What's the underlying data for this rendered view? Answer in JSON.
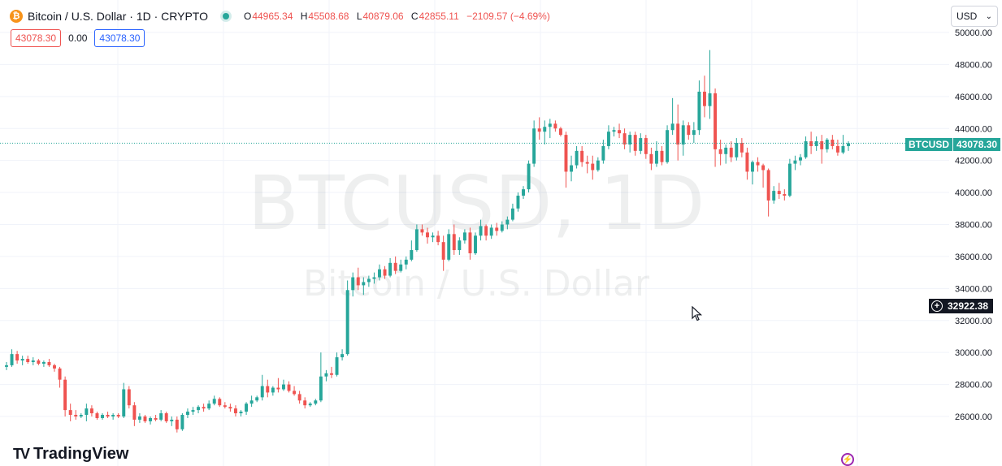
{
  "header": {
    "title": "Bitcoin / U.S. Dollar · 1D · CRYPTO",
    "coin_glyph": "₿",
    "ohlc": {
      "o_label": "O",
      "o_value": "44965.34",
      "h_label": "H",
      "h_value": "45508.68",
      "l_label": "L",
      "l_value": "40879.06",
      "c_label": "C",
      "c_value": "42855.11",
      "change": "−2109.57 (−4.69%)"
    },
    "badge_sell": "43078.30",
    "badge_spread": "0.00",
    "badge_buy": "43078.30"
  },
  "currency_select": {
    "value": "USD"
  },
  "watermark": {
    "symbol": "BTCUSD, 1D",
    "name": "Bitcoin / U.S. Dollar"
  },
  "logo": {
    "text": "TradingView",
    "glyph": "TV"
  },
  "price_tag": {
    "symbol": "BTCUSD",
    "price": "43078.30"
  },
  "crosshair_tag": {
    "price": "32922.38"
  },
  "colors": {
    "up": "#26a69a",
    "down": "#ef5350",
    "grid": "#f0f3fa",
    "text": "#131722"
  },
  "chart_data": {
    "type": "candlestick",
    "y_range": [
      24000,
      51000
    ],
    "y_ticks": [
      "26000.00",
      "28000.00",
      "30000.00",
      "32000.00",
      "34000.00",
      "36000.00",
      "38000.00",
      "40000.00",
      "42000.00",
      "44000.00",
      "46000.00",
      "48000.00",
      "50000.00"
    ],
    "last_price": 43078.3,
    "candles": [
      {
        "o": 29100,
        "h": 29400,
        "l": 28900,
        "c": 29200
      },
      {
        "o": 29200,
        "h": 30200,
        "l": 29100,
        "c": 29900
      },
      {
        "o": 29900,
        "h": 30100,
        "l": 29300,
        "c": 29500
      },
      {
        "o": 29500,
        "h": 29800,
        "l": 29200,
        "c": 29600
      },
      {
        "o": 29600,
        "h": 29800,
        "l": 29300,
        "c": 29400
      },
      {
        "o": 29400,
        "h": 29700,
        "l": 29200,
        "c": 29500
      },
      {
        "o": 29500,
        "h": 29600,
        "l": 29200,
        "c": 29300
      },
      {
        "o": 29300,
        "h": 29500,
        "l": 29100,
        "c": 29400
      },
      {
        "o": 29400,
        "h": 29600,
        "l": 29100,
        "c": 29200
      },
      {
        "o": 29200,
        "h": 29300,
        "l": 28800,
        "c": 29000
      },
      {
        "o": 29000,
        "h": 29100,
        "l": 27800,
        "c": 28300
      },
      {
        "o": 28300,
        "h": 28500,
        "l": 26000,
        "c": 26400
      },
      {
        "o": 26400,
        "h": 26800,
        "l": 25700,
        "c": 26100
      },
      {
        "o": 26100,
        "h": 26400,
        "l": 25800,
        "c": 26000
      },
      {
        "o": 26000,
        "h": 26200,
        "l": 25900,
        "c": 26100
      },
      {
        "o": 26100,
        "h": 26800,
        "l": 25700,
        "c": 26500
      },
      {
        "o": 26500,
        "h": 26700,
        "l": 26000,
        "c": 26200
      },
      {
        "o": 26200,
        "h": 26300,
        "l": 25800,
        "c": 25900
      },
      {
        "o": 25900,
        "h": 26200,
        "l": 25800,
        "c": 26100
      },
      {
        "o": 26100,
        "h": 26300,
        "l": 25900,
        "c": 26000
      },
      {
        "o": 26000,
        "h": 26200,
        "l": 25800,
        "c": 26100
      },
      {
        "o": 26100,
        "h": 26200,
        "l": 25900,
        "c": 26000
      },
      {
        "o": 26000,
        "h": 28100,
        "l": 25900,
        "c": 27700
      },
      {
        "o": 27700,
        "h": 27900,
        "l": 26500,
        "c": 26700
      },
      {
        "o": 26700,
        "h": 26900,
        "l": 25400,
        "c": 25800
      },
      {
        "o": 25800,
        "h": 26200,
        "l": 25600,
        "c": 26000
      },
      {
        "o": 26000,
        "h": 26100,
        "l": 25600,
        "c": 25700
      },
      {
        "o": 25700,
        "h": 26000,
        "l": 25500,
        "c": 25900
      },
      {
        "o": 25900,
        "h": 26100,
        "l": 25700,
        "c": 25800
      },
      {
        "o": 25800,
        "h": 26400,
        "l": 25700,
        "c": 26200
      },
      {
        "o": 26200,
        "h": 26300,
        "l": 25600,
        "c": 25700
      },
      {
        "o": 25700,
        "h": 26000,
        "l": 25400,
        "c": 25800
      },
      {
        "o": 25800,
        "h": 26000,
        "l": 25000,
        "c": 25200
      },
      {
        "o": 25200,
        "h": 26200,
        "l": 25100,
        "c": 26100
      },
      {
        "o": 26100,
        "h": 26500,
        "l": 25900,
        "c": 26300
      },
      {
        "o": 26300,
        "h": 26600,
        "l": 26100,
        "c": 26400
      },
      {
        "o": 26400,
        "h": 26700,
        "l": 26200,
        "c": 26600
      },
      {
        "o": 26600,
        "h": 26800,
        "l": 26300,
        "c": 26500
      },
      {
        "o": 26500,
        "h": 27000,
        "l": 26400,
        "c": 26800
      },
      {
        "o": 26800,
        "h": 27300,
        "l": 26700,
        "c": 27100
      },
      {
        "o": 27100,
        "h": 27200,
        "l": 26600,
        "c": 26700
      },
      {
        "o": 26700,
        "h": 26900,
        "l": 26500,
        "c": 26600
      },
      {
        "o": 26600,
        "h": 26800,
        "l": 26300,
        "c": 26500
      },
      {
        "o": 26500,
        "h": 26700,
        "l": 26000,
        "c": 26200
      },
      {
        "o": 26200,
        "h": 26400,
        "l": 26000,
        "c": 26300
      },
      {
        "o": 26300,
        "h": 26900,
        "l": 26100,
        "c": 26800
      },
      {
        "o": 26800,
        "h": 27300,
        "l": 26600,
        "c": 27000
      },
      {
        "o": 27000,
        "h": 27300,
        "l": 26900,
        "c": 27200
      },
      {
        "o": 27200,
        "h": 28600,
        "l": 27000,
        "c": 27900
      },
      {
        "o": 27900,
        "h": 28300,
        "l": 27200,
        "c": 27500
      },
      {
        "o": 27500,
        "h": 27900,
        "l": 27300,
        "c": 27800
      },
      {
        "o": 27800,
        "h": 28400,
        "l": 27500,
        "c": 27700
      },
      {
        "o": 27700,
        "h": 28300,
        "l": 27600,
        "c": 28000
      },
      {
        "o": 28000,
        "h": 28200,
        "l": 27500,
        "c": 27600
      },
      {
        "o": 27600,
        "h": 27900,
        "l": 27300,
        "c": 27400
      },
      {
        "o": 27400,
        "h": 27600,
        "l": 26800,
        "c": 27000
      },
      {
        "o": 27000,
        "h": 27200,
        "l": 26500,
        "c": 26700
      },
      {
        "o": 26700,
        "h": 26900,
        "l": 26600,
        "c": 26800
      },
      {
        "o": 26800,
        "h": 27100,
        "l": 26700,
        "c": 27000
      },
      {
        "o": 27000,
        "h": 30000,
        "l": 26900,
        "c": 28500
      },
      {
        "o": 28500,
        "h": 28900,
        "l": 28200,
        "c": 28700
      },
      {
        "o": 28700,
        "h": 29100,
        "l": 28400,
        "c": 28600
      },
      {
        "o": 28600,
        "h": 30000,
        "l": 28500,
        "c": 29700
      },
      {
        "o": 29700,
        "h": 30200,
        "l": 29500,
        "c": 29900
      },
      {
        "o": 29900,
        "h": 34500,
        "l": 29800,
        "c": 33900
      },
      {
        "o": 33900,
        "h": 35000,
        "l": 33500,
        "c": 34700
      },
      {
        "o": 34700,
        "h": 35300,
        "l": 33900,
        "c": 34200
      },
      {
        "o": 34200,
        "h": 34700,
        "l": 33600,
        "c": 34400
      },
      {
        "o": 34400,
        "h": 34800,
        "l": 34100,
        "c": 34600
      },
      {
        "o": 34600,
        "h": 35000,
        "l": 34300,
        "c": 34700
      },
      {
        "o": 34700,
        "h": 35500,
        "l": 34500,
        "c": 35200
      },
      {
        "o": 35200,
        "h": 35400,
        "l": 34600,
        "c": 34800
      },
      {
        "o": 34800,
        "h": 35900,
        "l": 34700,
        "c": 35600
      },
      {
        "o": 35600,
        "h": 36000,
        "l": 34900,
        "c": 35100
      },
      {
        "o": 35100,
        "h": 35800,
        "l": 35000,
        "c": 35500
      },
      {
        "o": 35500,
        "h": 36000,
        "l": 35200,
        "c": 35800
      },
      {
        "o": 35800,
        "h": 37000,
        "l": 35700,
        "c": 36400
      },
      {
        "o": 36400,
        "h": 38000,
        "l": 36300,
        "c": 37700
      },
      {
        "o": 37700,
        "h": 38000,
        "l": 37300,
        "c": 37500
      },
      {
        "o": 37500,
        "h": 37800,
        "l": 36800,
        "c": 37200
      },
      {
        "o": 37200,
        "h": 37500,
        "l": 36900,
        "c": 37300
      },
      {
        "o": 37300,
        "h": 37600,
        "l": 36700,
        "c": 36900
      },
      {
        "o": 36900,
        "h": 37300,
        "l": 35100,
        "c": 35800
      },
      {
        "o": 35800,
        "h": 37700,
        "l": 35700,
        "c": 37400
      },
      {
        "o": 37400,
        "h": 38000,
        "l": 36100,
        "c": 36400
      },
      {
        "o": 36400,
        "h": 37200,
        "l": 36100,
        "c": 37000
      },
      {
        "o": 37000,
        "h": 37700,
        "l": 36800,
        "c": 37500
      },
      {
        "o": 37500,
        "h": 37800,
        "l": 35800,
        "c": 36200
      },
      {
        "o": 36200,
        "h": 37500,
        "l": 36100,
        "c": 37300
      },
      {
        "o": 37300,
        "h": 38300,
        "l": 37000,
        "c": 37900
      },
      {
        "o": 37900,
        "h": 38000,
        "l": 37000,
        "c": 37300
      },
      {
        "o": 37300,
        "h": 38000,
        "l": 37100,
        "c": 37800
      },
      {
        "o": 37800,
        "h": 38100,
        "l": 37300,
        "c": 37600
      },
      {
        "o": 37600,
        "h": 38200,
        "l": 37500,
        "c": 38000
      },
      {
        "o": 38000,
        "h": 38500,
        "l": 37700,
        "c": 38300
      },
      {
        "o": 38300,
        "h": 39300,
        "l": 38200,
        "c": 39000
      },
      {
        "o": 39000,
        "h": 40000,
        "l": 38800,
        "c": 39800
      },
      {
        "o": 39800,
        "h": 40400,
        "l": 39600,
        "c": 40200
      },
      {
        "o": 40200,
        "h": 42000,
        "l": 40000,
        "c": 41800
      },
      {
        "o": 41800,
        "h": 44500,
        "l": 41600,
        "c": 44000
      },
      {
        "o": 44000,
        "h": 44700,
        "l": 43300,
        "c": 43800
      },
      {
        "o": 43800,
        "h": 44500,
        "l": 43000,
        "c": 44100
      },
      {
        "o": 44100,
        "h": 44600,
        "l": 43400,
        "c": 44300
      },
      {
        "o": 44300,
        "h": 44500,
        "l": 43800,
        "c": 44000
      },
      {
        "o": 44000,
        "h": 44100,
        "l": 43500,
        "c": 43600
      },
      {
        "o": 43600,
        "h": 43800,
        "l": 40300,
        "c": 41300
      },
      {
        "o": 41300,
        "h": 42300,
        "l": 40700,
        "c": 41700
      },
      {
        "o": 41700,
        "h": 42900,
        "l": 41500,
        "c": 42600
      },
      {
        "o": 42600,
        "h": 42900,
        "l": 41600,
        "c": 41900
      },
      {
        "o": 41900,
        "h": 42300,
        "l": 41200,
        "c": 41800
      },
      {
        "o": 41800,
        "h": 42300,
        "l": 40800,
        "c": 41400
      },
      {
        "o": 41400,
        "h": 42200,
        "l": 41300,
        "c": 42000
      },
      {
        "o": 42000,
        "h": 43300,
        "l": 41800,
        "c": 42900
      },
      {
        "o": 42900,
        "h": 44200,
        "l": 42700,
        "c": 43800
      },
      {
        "o": 43800,
        "h": 44100,
        "l": 43500,
        "c": 43900
      },
      {
        "o": 43900,
        "h": 44300,
        "l": 43400,
        "c": 43700
      },
      {
        "o": 43700,
        "h": 44000,
        "l": 42700,
        "c": 43000
      },
      {
        "o": 43000,
        "h": 43800,
        "l": 42500,
        "c": 43600
      },
      {
        "o": 43600,
        "h": 43800,
        "l": 42300,
        "c": 42600
      },
      {
        "o": 42600,
        "h": 43700,
        "l": 42400,
        "c": 43400
      },
      {
        "o": 43400,
        "h": 43600,
        "l": 42100,
        "c": 42400
      },
      {
        "o": 42400,
        "h": 42800,
        "l": 41400,
        "c": 41800
      },
      {
        "o": 41800,
        "h": 43200,
        "l": 41600,
        "c": 42600
      },
      {
        "o": 42600,
        "h": 42900,
        "l": 41700,
        "c": 41900
      },
      {
        "o": 41900,
        "h": 44200,
        "l": 41800,
        "c": 43900
      },
      {
        "o": 43900,
        "h": 45900,
        "l": 43600,
        "c": 44300
      },
      {
        "o": 44300,
        "h": 45500,
        "l": 42000,
        "c": 43000
      },
      {
        "o": 43000,
        "h": 44500,
        "l": 42300,
        "c": 44200
      },
      {
        "o": 44200,
        "h": 44400,
        "l": 43300,
        "c": 43600
      },
      {
        "o": 43600,
        "h": 44400,
        "l": 43100,
        "c": 43900
      },
      {
        "o": 43900,
        "h": 47000,
        "l": 43600,
        "c": 46300
      },
      {
        "o": 46300,
        "h": 47300,
        "l": 44700,
        "c": 45400
      },
      {
        "o": 45400,
        "h": 48900,
        "l": 44600,
        "c": 46200
      },
      {
        "o": 46200,
        "h": 46500,
        "l": 41600,
        "c": 42700
      },
      {
        "o": 42700,
        "h": 43300,
        "l": 41700,
        "c": 42400
      },
      {
        "o": 42400,
        "h": 43000,
        "l": 41800,
        "c": 42800
      },
      {
        "o": 42800,
        "h": 43200,
        "l": 41900,
        "c": 42200
      },
      {
        "o": 42200,
        "h": 43400,
        "l": 42000,
        "c": 43100
      },
      {
        "o": 43100,
        "h": 43400,
        "l": 42200,
        "c": 42500
      },
      {
        "o": 42500,
        "h": 42800,
        "l": 40800,
        "c": 41300
      },
      {
        "o": 41300,
        "h": 42000,
        "l": 40500,
        "c": 41900
      },
      {
        "o": 41900,
        "h": 42200,
        "l": 41300,
        "c": 41700
      },
      {
        "o": 41700,
        "h": 41800,
        "l": 40300,
        "c": 41400
      },
      {
        "o": 41400,
        "h": 41500,
        "l": 38500,
        "c": 39500
      },
      {
        "o": 39500,
        "h": 40400,
        "l": 39300,
        "c": 40100
      },
      {
        "o": 40100,
        "h": 40600,
        "l": 39600,
        "c": 39900
      },
      {
        "o": 39900,
        "h": 40200,
        "l": 39500,
        "c": 39800
      },
      {
        "o": 39800,
        "h": 42100,
        "l": 39700,
        "c": 41800
      },
      {
        "o": 41800,
        "h": 42300,
        "l": 41400,
        "c": 42000
      },
      {
        "o": 42000,
        "h": 42400,
        "l": 41700,
        "c": 42200
      },
      {
        "o": 42200,
        "h": 43500,
        "l": 42100,
        "c": 43200
      },
      {
        "o": 43200,
        "h": 43800,
        "l": 42400,
        "c": 42900
      },
      {
        "o": 42900,
        "h": 43500,
        "l": 42600,
        "c": 43200
      },
      {
        "o": 43200,
        "h": 43600,
        "l": 41800,
        "c": 42700
      },
      {
        "o": 42700,
        "h": 43400,
        "l": 42500,
        "c": 43300
      },
      {
        "o": 43300,
        "h": 43600,
        "l": 42700,
        "c": 42900
      },
      {
        "o": 42900,
        "h": 43300,
        "l": 42300,
        "c": 42500
      },
      {
        "o": 42500,
        "h": 43600,
        "l": 42400,
        "c": 42900
      },
      {
        "o": 42900,
        "h": 43200,
        "l": 42600,
        "c": 43078
      }
    ]
  }
}
